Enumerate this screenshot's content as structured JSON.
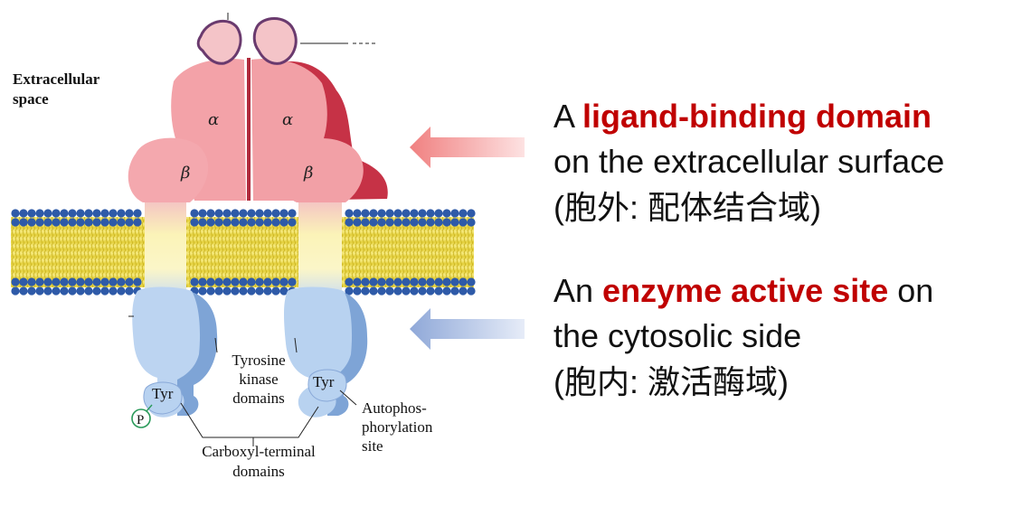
{
  "diagram": {
    "space_label_line1": "Extracellular",
    "space_label_line2": "space",
    "alpha_label": "α",
    "beta_label": "β",
    "tyr_label": "Tyr",
    "phosphate_label": "P",
    "tk_line1": "Tyrosine",
    "tk_line2": "kinase",
    "tk_line3": "domains",
    "auto_line1": "Autophos-",
    "auto_line2": "phorylation",
    "auto_line3": "site",
    "carboxyl_line1": "Carboxyl-terminal",
    "carboxyl_line2": "domains"
  },
  "panel_top": {
    "prefix": "A ",
    "highlight": "ligand-binding domain",
    "line2": "on the extracellular surface",
    "line3": "(胞外: 配体结合域)"
  },
  "panel_bottom": {
    "prefix": "An ",
    "highlight": "enzyme active site",
    "suffix": " on",
    "line2": "the cytosolic side",
    "line3": "(胞内: 激活酶域)"
  },
  "colors": {
    "top_highlight": "#c00000",
    "bottom_highlight": "#c00000",
    "arrow_top": "#f08080",
    "arrow_bottom": "#8fa8d8",
    "membrane_heads": "#2e5aa8",
    "membrane_tails": "#e8d84a",
    "extracellular_protein": "#f2a0a6",
    "cytosolic_protein": "#b8d2f0"
  }
}
